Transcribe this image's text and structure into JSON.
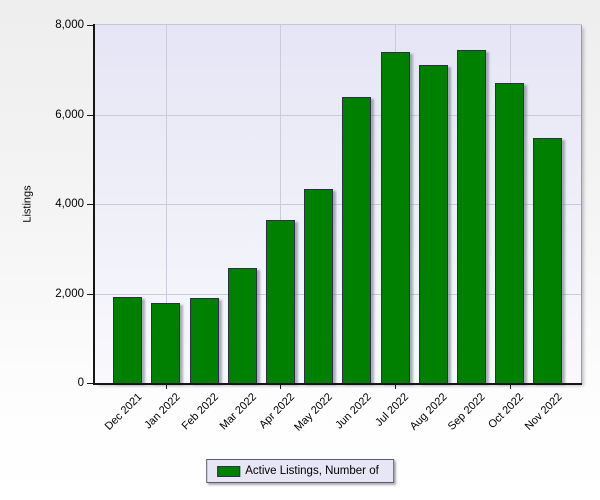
{
  "chart_data": {
    "type": "bar",
    "title": "",
    "ylabel": "Listings",
    "xlabel": "",
    "series_name": "Active Listings, Number of",
    "categories": [
      "Dec 2021",
      "Jan 2022",
      "Feb 2022",
      "Mar 2022",
      "Apr 2022",
      "May 2022",
      "Jun 2022",
      "Jul 2022",
      "Aug 2022",
      "Sep 2022",
      "Oct 2022",
      "Nov 2022"
    ],
    "values": [
      1920,
      1780,
      1900,
      2560,
      3640,
      4330,
      6390,
      7400,
      7110,
      7440,
      6710,
      5470
    ],
    "ylim": [
      0,
      8000
    ],
    "y_ticks": [
      0,
      2000,
      4000,
      6000,
      8000
    ],
    "y_tick_labels": [
      "0",
      "2,000",
      "4,000",
      "6,000",
      "8,000"
    ],
    "x_major_tick_indices": [
      1,
      4,
      7,
      10
    ],
    "grid": true,
    "legend_position": "bottom"
  },
  "colors": {
    "bar_fill": "#008000",
    "bar_border": "#2e2e4a",
    "grid": "#cbcbdc",
    "axis": "#161616",
    "plot_bg_top": "#e5e5f6",
    "plot_bg_bottom": "#f9f9fd",
    "legend_bg": "#e6e6f6"
  }
}
